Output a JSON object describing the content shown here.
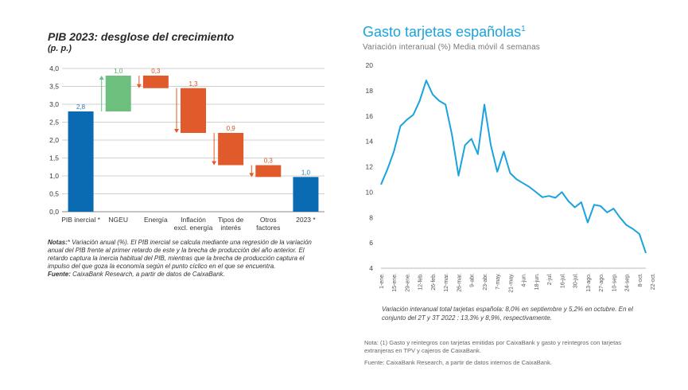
{
  "left": {
    "title": "PIB 2023: desglose del crecimiento",
    "unit": "(p. p.)",
    "notes_label": "Notas:",
    "notes_text": "* Variación anual (%). El PIB inercial se calcula mediante una regresión de la variación anual del PIB frente al primer retardo de este y la brecha de producción del año anterior. El retardo captura la inercia habitual del PIB, mientras que la brecha de producción captura el impulso del que goza la economía según el punto cíclico en el que se encuentra.",
    "source_label": "Fuente:",
    "source_text": " CaixaBank Research, a partir de datos de CaixaBank."
  },
  "right": {
    "title": "Gasto tarjetas españolas",
    "title_sup": "1",
    "subtitle": "Variación interanual (%) Media móvil 4 semanas",
    "annotation": "Variación interanual total tarjetas española: 8,0% en septiembre y 5,2% en octubre.  En el conjunto del 2T y 3T 2022 : 13,3% y 8,9%, respectivamente.",
    "note": "Nota: (1) Gasto y reintegros con tarjetas emitidas por CaixaBank y gasto y reintegros con tarjetas extranjeras en TPV y cajeros de CaixaBank.",
    "source": "Fuente: CaixaBank Research, a partir de datos internos de CaixaBank."
  },
  "colors": {
    "blue_bar": "#0a6bb3",
    "green_bar": "#6dbf7e",
    "red_bar": "#e05a2b",
    "line": "#1aa3de",
    "label_blue": "#2a7ab8",
    "label_green": "#5aa86b",
    "label_red": "#d9531e"
  },
  "chart_data": [
    {
      "type": "bar",
      "subtype": "waterfall",
      "title": "PIB 2023: desglose del crecimiento",
      "ylabel": "(p. p.)",
      "ylim": [
        0,
        4
      ],
      "yticks": [
        "0,0",
        "0,5",
        "1,0",
        "1,5",
        "2,0",
        "2,5",
        "3,0",
        "3,5",
        "4,0"
      ],
      "categories": [
        "PIB inercial *",
        "NGEU",
        "Energía",
        "Inflación excl. energía",
        "Tipos de interés",
        "Otros factores",
        "2023 *"
      ],
      "category_lines": [
        [
          "PIB inercial *"
        ],
        [
          "NGEU"
        ],
        [
          "Energía"
        ],
        [
          "Inflación",
          "excl. energía"
        ],
        [
          "Tipos de",
          "interés"
        ],
        [
          "Otros",
          "factores"
        ],
        [
          "2023 *"
        ]
      ],
      "bars": [
        {
          "category": "PIB inercial *",
          "kind": "total",
          "start": 0,
          "end": 2.8,
          "label": "2,8"
        },
        {
          "category": "NGEU",
          "kind": "increase",
          "start": 2.8,
          "end": 3.8,
          "label": "1,0"
        },
        {
          "category": "Energía",
          "kind": "decrease",
          "start": 3.8,
          "end": 3.45,
          "label": "0,3"
        },
        {
          "category": "Inflación excl. energía",
          "kind": "decrease",
          "start": 3.45,
          "end": 2.2,
          "label": "1,3"
        },
        {
          "category": "Tipos de interés",
          "kind": "decrease",
          "start": 2.2,
          "end": 1.3,
          "label": "0,9"
        },
        {
          "category": "Otros factores",
          "kind": "decrease",
          "start": 1.3,
          "end": 0.97,
          "label": "0,3"
        },
        {
          "category": "2023 *",
          "kind": "total",
          "start": 0,
          "end": 0.97,
          "label": "1,0"
        }
      ]
    },
    {
      "type": "line",
      "title": "Gasto tarjetas españolas",
      "subtitle": "Variación interanual (%) Media móvil 4 semanas",
      "ylim": [
        4,
        20
      ],
      "yticks": [
        "4",
        "6",
        "8",
        "10",
        "12",
        "14",
        "16",
        "18",
        "20"
      ],
      "x_tick_labels": [
        "1-ene.",
        "15-ene.",
        "29-ene.",
        "12-feb.",
        "26-feb.",
        "12-mar.",
        "26-mar.",
        "9-abr.",
        "23-abr.",
        "7-may.",
        "21-may.",
        "4-jun.",
        "18-jun.",
        "2-jul.",
        "16-jul.",
        "30-jul.",
        "13-ago.",
        "27-ago.",
        "10-sep.",
        "24-sep.",
        "8-oct.",
        "22-oct."
      ],
      "series": [
        {
          "values": [
            10.6,
            11.8,
            13.2,
            15.2,
            15.7,
            16.1,
            17.2,
            18.8,
            17.7,
            17.2,
            16.9,
            14.5,
            11.3,
            13.7,
            14.2,
            13.0,
            16.9,
            13.7,
            11.6,
            13.2,
            11.5,
            11.0,
            10.7,
            10.4,
            10.0,
            9.6,
            9.7,
            9.55,
            10.0,
            9.3,
            8.8,
            9.2,
            7.6,
            9.0,
            8.9,
            8.4,
            8.7,
            8.0,
            7.4,
            7.1,
            6.7,
            5.2
          ]
        }
      ]
    }
  ]
}
